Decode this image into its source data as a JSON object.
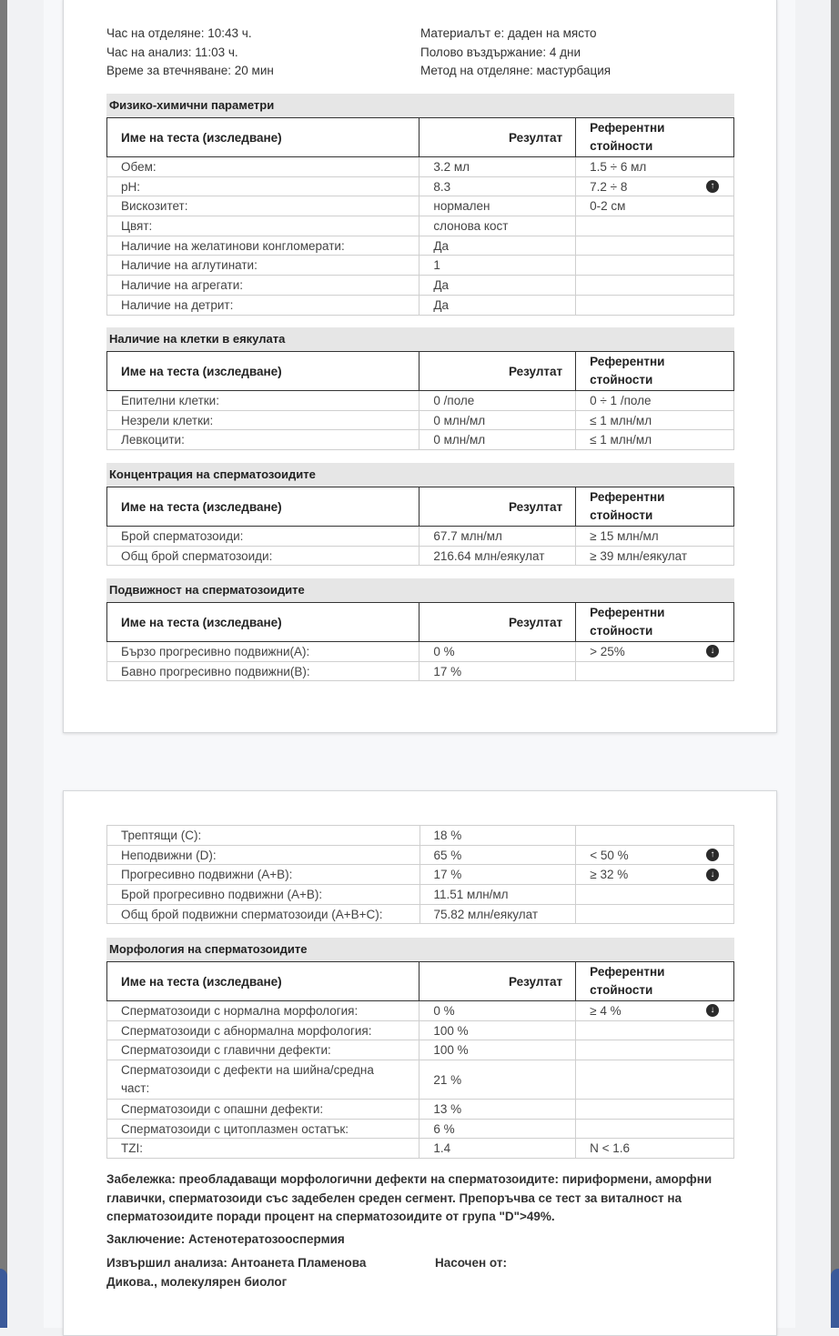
{
  "info": {
    "left": [
      "Час на отделяне: 10:43 ч.",
      "Час на анализ: 11:03 ч.",
      "Време за втечняване: 20 мин"
    ],
    "right": [
      "Материалът е: даден на място",
      "Полово въздържание: 4 дни",
      "Метод на отделяне: мастурбация"
    ]
  },
  "headers": {
    "name": "Име на теста (изследване)",
    "result": "Резултат",
    "ref1": "Референтни",
    "ref2": "стойности"
  },
  "sections": [
    {
      "title": "Физико-химични параметри",
      "rows": [
        [
          "Обем:",
          "3.2 мл",
          "1.5 ÷ 6 мл",
          ""
        ],
        [
          "pH:",
          "8.3",
          "7.2 ÷ 8",
          "up"
        ],
        [
          "Вискозитет:",
          "нормален",
          "0-2 см",
          ""
        ],
        [
          "Цвят:",
          "слонова кост",
          "",
          ""
        ],
        [
          "Наличие на желатинови конгломерати:",
          "Да",
          "",
          ""
        ],
        [
          "Наличие на аглутинати:",
          "1",
          "",
          ""
        ],
        [
          "Наличие на агрегати:",
          "Да",
          "",
          ""
        ],
        [
          "Наличие на детрит:",
          "Да",
          "",
          ""
        ]
      ]
    },
    {
      "title": "Наличие на клетки в еякулата",
      "rows": [
        [
          "Епителни клетки:",
          "0 /поле",
          "0 ÷ 1 /поле",
          ""
        ],
        [
          "Незрели клетки:",
          "0 млн/мл",
          "≤ 1 млн/мл",
          ""
        ],
        [
          "Левкоцити:",
          "0 млн/мл",
          "≤ 1 млн/мл",
          ""
        ]
      ]
    },
    {
      "title": "Концентрация на сперматозоидите",
      "rows": [
        [
          "Брой сперматозоиди:",
          "67.7 млн/мл",
          "≥ 15 млн/мл",
          ""
        ],
        [
          "Общ брой сперматозоиди:",
          "216.64 млн/еякулат",
          "≥ 39 млн/еякулат",
          ""
        ]
      ]
    },
    {
      "title": "Подвижност на сперматозоидите",
      "rows": [
        [
          "Бързо прогресивно подвижни(A):",
          "0 %",
          "> 25%",
          "down"
        ],
        [
          "Бавно прогресивно подвижни(B):",
          "17 %",
          "",
          ""
        ]
      ]
    },
    {
      "title": "",
      "rows": [
        [
          "Трептящи (C):",
          "18 %",
          "",
          ""
        ],
        [
          "Неподвижни (D):",
          "65 %",
          "< 50 %",
          "up"
        ],
        [
          "Прогресивно подвижни (A+B):",
          "17 %",
          "≥ 32 %",
          "down"
        ],
        [
          "Брой прогресивно подвижни (A+B):",
          "11.51 млн/мл",
          "",
          ""
        ],
        [
          "Общ брой подвижни сперматозоиди (A+B+C):",
          "75.82 млн/еякулат",
          "",
          ""
        ]
      ]
    },
    {
      "title": "Морфология на сперматозоидите",
      "rows": [
        [
          "Сперматозоиди с нормална морфология:",
          "0 %",
          "≥ 4 %",
          "down"
        ],
        [
          "Сперматозоиди с абнормална морфология:",
          "100 %",
          "",
          ""
        ],
        [
          "Сперматозоиди с главични дефекти:",
          "100 %",
          "",
          ""
        ],
        [
          "Сперматозоиди с дефекти на шийна/средна част:",
          "21 %",
          "",
          ""
        ],
        [
          "Сперматозоиди с опашни дефекти:",
          "13 %",
          "",
          ""
        ],
        [
          "Сперматозоиди с цитоплазмен остатък:",
          "6 %",
          "",
          ""
        ],
        [
          "TZI:",
          "1.4",
          "N < 1.6",
          ""
        ]
      ]
    }
  ],
  "note": "Забележка: преобладаващи морфологични дефекти на сперматозоидите: пириформени, аморфни главички, сперматозоиди със задебелен среден сегмент. Препоръчва се тест за виталност на сперматозоидите поради процент на сперматозоидите от група \"D\">49%.",
  "conclusion": "Заключение: Астенотератозооспермия",
  "performed_by": "Извършил анализа: Антоанета Пламенова Дикова., молекулярен биолог",
  "referred_by": "Насочен от:",
  "icons": {
    "up": "arrow-up-circle-icon",
    "down": "arrow-down-circle-icon"
  }
}
